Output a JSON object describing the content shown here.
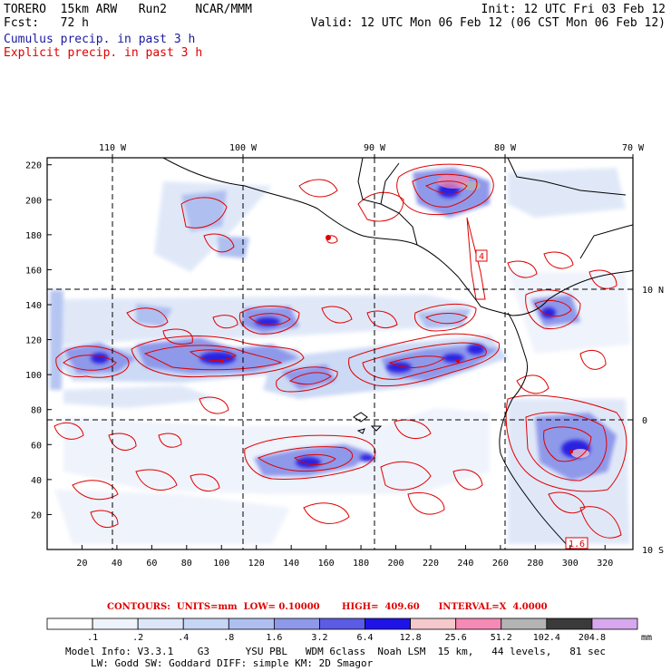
{
  "header": {
    "model": "TORERO  15km ARW   Run2    NCAR/MMM",
    "init": "Init: 12 UTC Fri 03 Feb 12",
    "fcst_label": "Fcst:   72 h",
    "valid": "Valid: 12 UTC Mon 06 Feb 12 (06 CST Mon 06 Feb 12)",
    "line_cumulus": "Cumulus precip. in past 3 h",
    "line_explicit": "Explicit precip. in past 3 h"
  },
  "map": {
    "top_labels": [
      "110 W",
      "100 W",
      "90 W",
      "80 W",
      "70 W"
    ],
    "right_labels": [
      "10 N",
      "0",
      "10 S"
    ],
    "x_ticks": [
      "20",
      "40",
      "60",
      "80",
      "100",
      "120",
      "140",
      "160",
      "180",
      "200",
      "220",
      "240",
      "260",
      "280",
      "300",
      "320"
    ],
    "y_ticks": [
      "20",
      "40",
      "60",
      "80",
      "100",
      "120",
      "140",
      "160",
      "180",
      "200",
      "220"
    ],
    "boxed_labels": [
      "4",
      "1.6"
    ]
  },
  "legend": {
    "contour_line": "CONTOURS:  UNITS=mm  LOW= 0.10000       HIGH=  409.60      INTERVAL=X  4.0000",
    "levels": [
      ".1",
      ".2",
      ".4",
      ".8",
      "1.6",
      "3.2",
      "6.4",
      "12.8",
      "25.6",
      "51.2",
      "102.4",
      "204.8"
    ],
    "unit": "mm",
    "colors": [
      "#ffffff",
      "#eef2fb",
      "#dde6f8",
      "#c7d6f4",
      "#aebff0",
      "#8f99ea",
      "#5b5be6",
      "#1e14e8",
      "#f4c8cc",
      "#f58ab4",
      "#b4b4b4",
      "#3a3a3a",
      "#d7a8ee"
    ]
  },
  "model_info": {
    "line1": "Model Info: V3.3.1    G3      YSU PBL   WDM 6class  Noah LSM  15 km,   44 levels,   81 sec",
    "line2": "LW: Godd SW: Goddard DIFF: simple KM: 2D Smagor"
  }
}
